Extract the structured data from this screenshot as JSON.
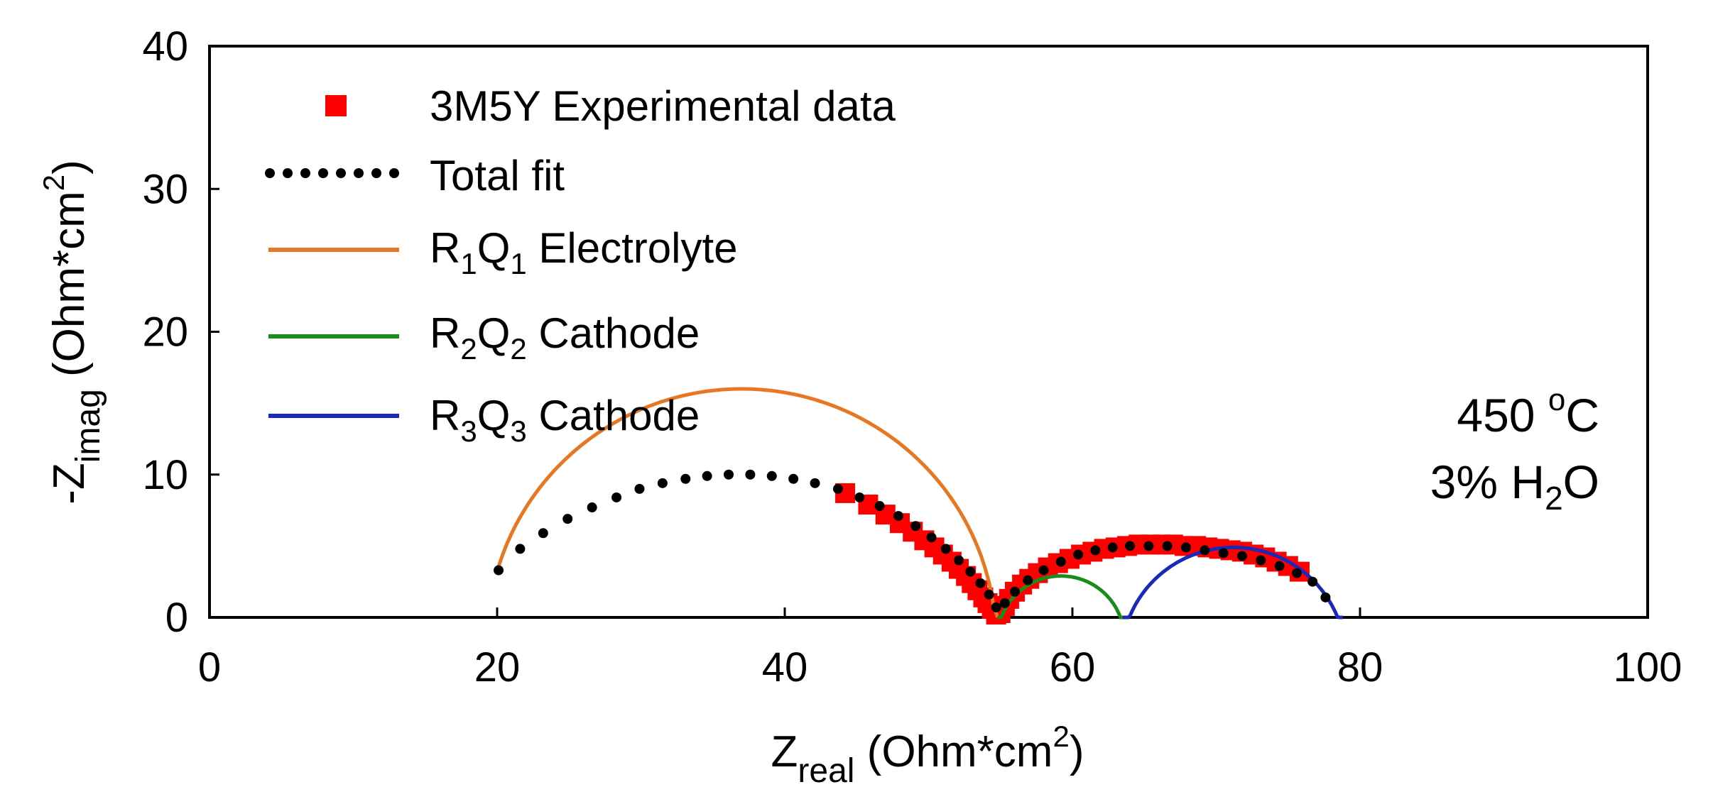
{
  "chart_data": {
    "type": "scatter",
    "title": "",
    "xlabel": {
      "main": "Z",
      "sub": "real",
      "rest": " (Ohm*cm",
      "sup": "2",
      "close": ")"
    },
    "ylabel": {
      "main": "-Z",
      "sub": "imag",
      "rest": " (Ohm*cm",
      "sup": "2",
      "close": ")"
    },
    "xlim": [
      0,
      100
    ],
    "ylim": [
      0,
      40
    ],
    "xticks": [
      0,
      20,
      40,
      60,
      80,
      100
    ],
    "yticks": [
      0,
      10,
      20,
      30,
      40
    ],
    "grid": false,
    "legend_position": "top-left",
    "legend": [
      {
        "id": "exp",
        "label": "3M5Y Experimental data",
        "color": "#ff0000",
        "style": "square"
      },
      {
        "id": "total",
        "label": "Total fit",
        "color": "#000000",
        "style": "dots"
      },
      {
        "id": "r1q1",
        "label_r": "R",
        "label_n1": "1",
        "label_q": "Q",
        "label_n2": "1",
        "label_rest": " Electrolyte",
        "color": "#e87722",
        "style": "line"
      },
      {
        "id": "r2q2",
        "label_r": "R",
        "label_n1": "2",
        "label_q": "Q",
        "label_n2": "2",
        "label_rest": " Cathode",
        "color": "#1a8c1a",
        "style": "line"
      },
      {
        "id": "r3q3",
        "label_r": "R",
        "label_n1": "3",
        "label_q": "Q",
        "label_n2": "3",
        "label_rest": " Cathode",
        "color": "#1a2ab8",
        "style": "line"
      }
    ],
    "annotations": {
      "temperature_value": "450 ",
      "temperature_sup": "o",
      "temperature_unit": "C",
      "humidity_prefix": "3% H",
      "humidity_sub": "2",
      "humidity_suffix": "O"
    },
    "series": [
      {
        "name": "R1Q1 Electrolyte",
        "kind": "arc",
        "color": "#e87722",
        "center_x": 37.0,
        "center_y": -1.7,
        "radius": 17.7,
        "x_range": [
          20.1,
          54.8
        ]
      },
      {
        "name": "R2Q2 Cathode",
        "kind": "arc",
        "color": "#1a8c1a",
        "center_x": 59.2,
        "center_y": -1.5,
        "radius": 4.4,
        "x_range": [
          54.8,
          63.5
        ]
      },
      {
        "name": "R3Q3 Cathode",
        "kind": "arc",
        "color": "#1a2ab8",
        "center_x": 71.2,
        "center_y": -2.9,
        "radius": 7.8,
        "x_range": [
          63.5,
          78.8
        ]
      },
      {
        "name": "3M5Y Experimental data",
        "kind": "points",
        "color": "#ff0000",
        "x": [
          44.2,
          45.8,
          47.0,
          48.0,
          48.9,
          49.7,
          50.4,
          51.0,
          51.6,
          52.1,
          52.6,
          53.0,
          53.4,
          53.8,
          54.1,
          54.4,
          54.7,
          55.0,
          55.3,
          55.6,
          56.0,
          56.5,
          57.0,
          57.6,
          58.3,
          59.0,
          59.8,
          60.6,
          61.4,
          62.2,
          63.0,
          63.8,
          64.6,
          65.4,
          66.2,
          67.0,
          67.8,
          68.6,
          69.4,
          70.2,
          71.0,
          71.8,
          72.6,
          73.4,
          74.2,
          75.0,
          75.8
        ],
        "y": [
          8.7,
          7.9,
          7.2,
          6.6,
          6.0,
          5.4,
          4.9,
          4.4,
          3.9,
          3.4,
          2.9,
          2.4,
          1.9,
          1.4,
          1.0,
          0.6,
          0.2,
          0.3,
          0.8,
          1.3,
          1.8,
          2.3,
          2.7,
          3.1,
          3.5,
          3.8,
          4.1,
          4.4,
          4.6,
          4.8,
          4.9,
          5.0,
          5.1,
          5.1,
          5.1,
          5.1,
          5.0,
          5.0,
          4.9,
          4.8,
          4.7,
          4.6,
          4.4,
          4.2,
          3.9,
          3.6,
          3.2
        ]
      },
      {
        "name": "Total fit",
        "kind": "points",
        "color": "#000000",
        "x": [
          20.1,
          21.6,
          23.2,
          24.9,
          26.6,
          28.3,
          29.9,
          31.5,
          33.1,
          34.6,
          36.1,
          37.6,
          39.1,
          40.6,
          42.1,
          43.7,
          45.2,
          46.6,
          47.9,
          49.1,
          50.2,
          51.2,
          52.1,
          52.9,
          53.6,
          54.2,
          54.7,
          55.3,
          56.0,
          56.9,
          58.0,
          59.2,
          60.4,
          61.6,
          62.8,
          64.0,
          65.3,
          66.6,
          67.9,
          69.2,
          70.5,
          71.8,
          73.1,
          74.4,
          75.6,
          76.7,
          77.6
        ],
        "y": [
          3.3,
          4.8,
          5.9,
          6.9,
          7.7,
          8.4,
          9.0,
          9.4,
          9.7,
          9.9,
          10.0,
          10.0,
          9.9,
          9.7,
          9.4,
          9.0,
          8.4,
          7.8,
          7.1,
          6.4,
          5.6,
          4.8,
          4.0,
          3.2,
          2.4,
          1.6,
          0.7,
          1.0,
          1.8,
          2.6,
          3.3,
          3.9,
          4.4,
          4.7,
          4.9,
          5.0,
          5.0,
          5.0,
          4.9,
          4.7,
          4.5,
          4.3,
          4.0,
          3.6,
          3.1,
          2.5,
          1.4
        ]
      }
    ]
  }
}
